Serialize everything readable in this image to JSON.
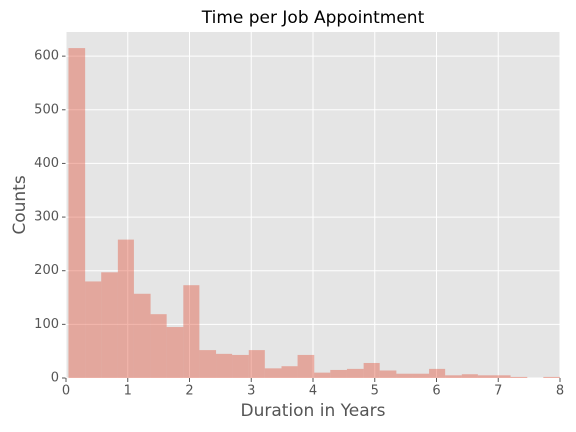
{
  "chart_data": {
    "type": "histogram",
    "title": "Time per Job Appointment",
    "x_label": "Duration in Years",
    "y_label": "Counts",
    "bins": [
      0.04,
      0.31,
      0.57,
      0.84,
      1.1,
      1.37,
      1.63,
      1.9,
      2.16,
      2.43,
      2.69,
      2.96,
      3.22,
      3.49,
      3.75,
      4.02,
      4.28,
      4.55,
      4.82,
      5.08,
      5.35,
      5.61,
      5.88,
      6.14,
      6.41,
      6.67,
      6.94,
      7.2,
      7.47,
      7.73,
      8.0
    ],
    "values": [
      615,
      180,
      197,
      258,
      157,
      119,
      95,
      173,
      52,
      45,
      43,
      52,
      18,
      22,
      43,
      10,
      15,
      17,
      28,
      14,
      8,
      8,
      17,
      5,
      7,
      5,
      5,
      2,
      0,
      2
    ],
    "color": "#E24A33",
    "xlim": [
      0,
      8
    ],
    "xticks": [
      0,
      1,
      2,
      3,
      4,
      5,
      6,
      7,
      8
    ],
    "ylim": [
      0,
      645
    ],
    "yticks": [
      0,
      100,
      200,
      300,
      400,
      500,
      600
    ],
    "grid": true
  }
}
